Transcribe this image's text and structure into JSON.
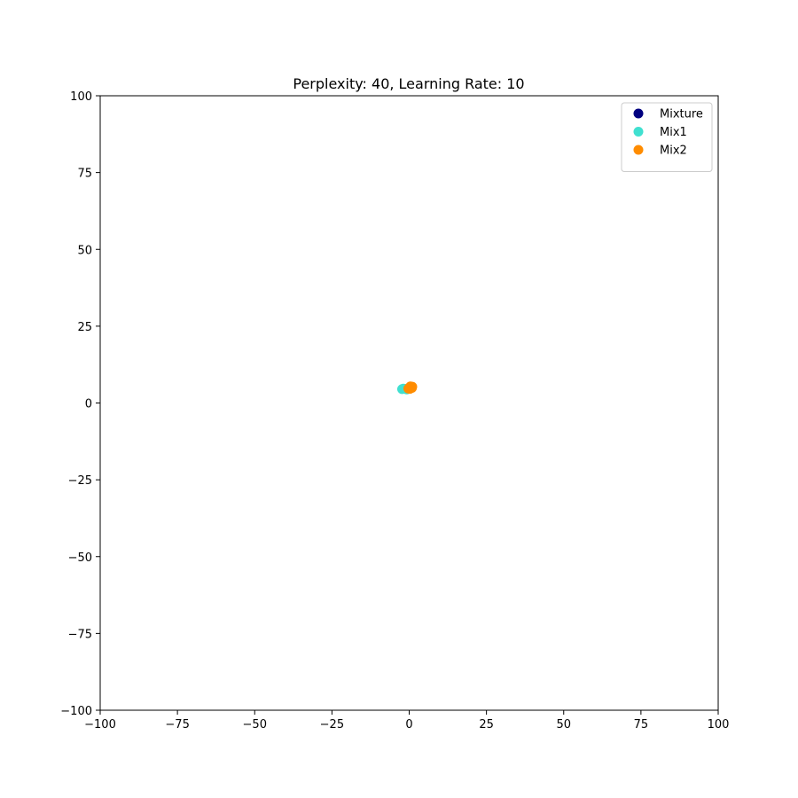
{
  "chart_data": {
    "type": "scatter",
    "title": "Perplexity: 40, Learning Rate: 10",
    "xlabel": "",
    "ylabel": "",
    "xlim": [
      -100,
      100
    ],
    "ylim": [
      -100,
      100
    ],
    "xticks": [
      -100,
      -75,
      -50,
      -25,
      0,
      25,
      50,
      75,
      100
    ],
    "yticks": [
      -100,
      -75,
      -50,
      -25,
      0,
      25,
      50,
      75,
      100
    ],
    "grid": false,
    "legend_position": "top-right",
    "series": [
      {
        "name": "Mixture",
        "color": "#000080",
        "points": [
          [
            0.0,
            4.8
          ],
          [
            0.3,
            5.0
          ]
        ]
      },
      {
        "name": "Mix1",
        "color": "#40E0D0",
        "points": [
          [
            -2.3,
            4.5
          ],
          [
            -1.5,
            4.6
          ],
          [
            -0.8,
            4.4
          ],
          [
            -1.9,
            4.7
          ]
        ]
      },
      {
        "name": "Mix2",
        "color": "#FF8C00",
        "points": [
          [
            0.2,
            4.6
          ],
          [
            0.6,
            5.2
          ],
          [
            0.9,
            4.9
          ],
          [
            0.4,
            5.4
          ],
          [
            -0.3,
            4.7
          ],
          [
            1.0,
            5.3
          ],
          [
            0.1,
            5.1
          ]
        ]
      }
    ]
  }
}
